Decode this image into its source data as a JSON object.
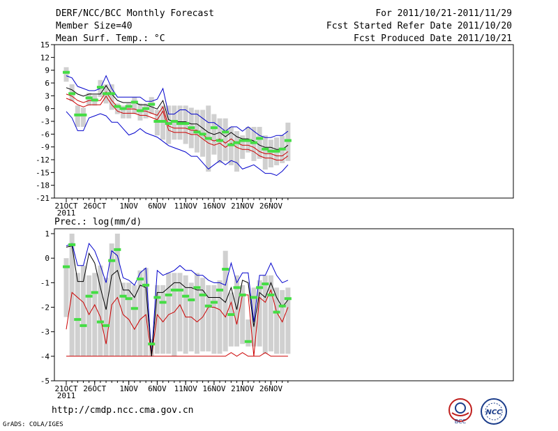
{
  "header": {
    "title": "DERF/NCC/BCC Monthly Forecast",
    "member_size": "Member Size=40",
    "variable": "Mean Surf. Temp.: °C",
    "period": "For 2011/10/21-2011/11/29",
    "started": "Fcst Started Refer Date 2011/10/20",
    "produced": "Fcst Produced Date 2011/10/21"
  },
  "footer": {
    "url": "http://cmdp.ncc.cma.gov.cn",
    "grads": "GrADS: COLA/IGES"
  },
  "logos": [
    {
      "name": "bcc-logo",
      "text": "BCC"
    },
    {
      "name": "ncc-logo",
      "text": "NCC"
    }
  ],
  "colors": {
    "median": "#000000",
    "envelope": "#0000cc",
    "inner": "#cc0000",
    "obs": "#44dd44",
    "box": "#d0d0d0",
    "grid": "#000000"
  },
  "chart_data": [
    {
      "type": "line",
      "title": "Mean Surf. Temp.: °C",
      "x_labels": [
        "21OCT",
        "26OCT",
        "1NOV",
        "6NOV",
        "11NOV",
        "16NOV",
        "21NOV",
        "26NOV"
      ],
      "x_label_days": [
        0,
        5,
        11,
        16,
        21,
        26,
        31,
        36
      ],
      "year_label": "2011",
      "ylim": [
        -21,
        15
      ],
      "yticks": [
        15,
        12,
        9,
        6,
        3,
        0,
        -3,
        -6,
        -9,
        -12,
        -15,
        -18,
        -21
      ],
      "days": 40,
      "series": [
        {
          "name": "ensemble max",
          "values": [
            7.7,
            7.2,
            5.2,
            4.7,
            4.2,
            4.2,
            4.7,
            7.7,
            4.7,
            2.7,
            2.7,
            2.7,
            2.7,
            2.7,
            1.7,
            1.7,
            2.2,
            4.7,
            -1.3,
            -1.3,
            -0.3,
            -0.3,
            -1.3,
            -1.3,
            -2.3,
            -3.3,
            -3.3,
            -4.3,
            -5.3,
            -4.3,
            -4.3,
            -5.3,
            -4.3,
            -5.3,
            -6.3,
            -6.8,
            -6.8,
            -6.3,
            -6.3,
            -5.3
          ]
        },
        {
          "name": "ensemble min",
          "values": [
            -0.7,
            -2.2,
            -5.2,
            -5.2,
            -2.2,
            -1.7,
            -1.2,
            -1.7,
            -3.2,
            -3.2,
            -4.7,
            -6.2,
            -5.7,
            -4.7,
            -5.7,
            -6.2,
            -6.7,
            -7.7,
            -8.7,
            -9.2,
            -9.7,
            -10.2,
            -11.2,
            -11.2,
            -12.7,
            -14.2,
            -13.2,
            -12.2,
            -13.2,
            -12.2,
            -12.7,
            -14.2,
            -13.7,
            -13.2,
            -14.2,
            -15.2,
            -15.2,
            -15.7,
            -14.7,
            -13.2
          ]
        },
        {
          "name": "ensemble median",
          "values": [
            4.9,
            4.4,
            3.4,
            2.9,
            3.4,
            3.4,
            3.4,
            5.4,
            3.4,
            1.9,
            1.4,
            1.4,
            1.4,
            0.9,
            0.9,
            0.4,
            -0.1,
            1.9,
            -2.6,
            -3.1,
            -3.1,
            -3.1,
            -3.6,
            -3.6,
            -4.6,
            -5.6,
            -6.1,
            -5.6,
            -6.6,
            -5.6,
            -6.6,
            -7.1,
            -7.1,
            -7.6,
            -8.6,
            -9.1,
            -9.1,
            -9.6,
            -9.6,
            -8.6
          ]
        },
        {
          "name": "upper quartile",
          "values": [
            3.4,
            2.9,
            1.9,
            1.4,
            1.9,
            1.9,
            1.9,
            3.9,
            1.9,
            0.4,
            -0.1,
            -0.1,
            -0.1,
            -0.6,
            -0.6,
            -1.1,
            -1.6,
            0.4,
            -4.1,
            -4.6,
            -4.6,
            -4.6,
            -5.1,
            -5.1,
            -6.1,
            -7.1,
            -7.6,
            -7.1,
            -8.1,
            -7.1,
            -8.1,
            -8.6,
            -8.6,
            -9.1,
            -10.1,
            -10.6,
            -10.6,
            -11.1,
            -11.1,
            -10.1
          ]
        },
        {
          "name": "lower quartile",
          "values": [
            2.4,
            1.9,
            0.9,
            0.4,
            0.9,
            0.9,
            0.9,
            2.9,
            0.9,
            -0.6,
            -1.1,
            -1.1,
            -1.1,
            -1.6,
            -1.6,
            -2.1,
            -2.6,
            -0.6,
            -5.1,
            -5.6,
            -5.6,
            -5.6,
            -6.1,
            -6.1,
            -7.1,
            -8.1,
            -8.6,
            -8.1,
            -9.1,
            -8.1,
            -9.1,
            -9.6,
            -9.6,
            -10.1,
            -11.1,
            -11.6,
            -11.6,
            -12.1,
            -12.1,
            -11.1
          ]
        },
        {
          "name": "observed",
          "values": [
            8.5,
            3.5,
            -1.5,
            -1.5,
            2.5,
            2.0,
            5.0,
            3.5,
            3.5,
            0.5,
            0.0,
            0.5,
            1.5,
            -0.5,
            0.0,
            1.0,
            -3.0,
            -3.0,
            -3.5,
            -3.0,
            -3.5,
            -3.5,
            -4.5,
            -5.5,
            -6.0,
            -7.0,
            -4.5,
            -7.5,
            -5.5,
            -8.5,
            -8.0,
            -7.5,
            -7.5,
            -8.0,
            -7.0,
            -9.5,
            -10.0,
            -10.0,
            -9.5,
            -7.5
          ]
        },
        {
          "name": "box high",
          "values": [
            9.7,
            5.7,
            0.7,
            0.2,
            3.7,
            3.2,
            6.7,
            5.7,
            5.7,
            1.2,
            0.7,
            1.2,
            2.7,
            1.2,
            1.2,
            2.7,
            -0.3,
            0.7,
            0.7,
            0.7,
            0.7,
            0.7,
            0.2,
            -0.3,
            -0.3,
            0.7,
            -1.3,
            -2.3,
            -2.3,
            -4.3,
            -5.3,
            -6.3,
            -4.3,
            -4.3,
            -4.3,
            -6.3,
            -7.3,
            -6.8,
            -6.3,
            -3.3
          ]
        },
        {
          "name": "box low",
          "values": [
            6.3,
            1.7,
            -4.3,
            -4.3,
            0.7,
            0.7,
            2.7,
            1.2,
            -0.3,
            -1.3,
            -2.3,
            -2.3,
            -1.3,
            -2.8,
            -2.3,
            -1.3,
            -6.3,
            -7.3,
            -8.3,
            -7.3,
            -7.3,
            -8.3,
            -9.3,
            -10.3,
            -11.3,
            -14.8,
            -10.8,
            -12.8,
            -12.3,
            -13.3,
            -14.8,
            -11.8,
            -10.3,
            -12.3,
            -11.8,
            -14.3,
            -13.8,
            -13.3,
            -12.8,
            -12.3
          ]
        }
      ]
    },
    {
      "type": "line",
      "title": "Prec.: log(mm/d)",
      "x_labels": [
        "21OCT",
        "26OCT",
        "1NOV",
        "6NOV",
        "11NOV",
        "16NOV",
        "21NOV",
        "26NOV"
      ],
      "x_label_days": [
        0,
        5,
        11,
        16,
        21,
        26,
        31,
        36
      ],
      "year_label": "2011",
      "ylim": [
        -5,
        1.2
      ],
      "yticks": [
        1,
        0,
        -1,
        -2,
        -3,
        -4,
        -5
      ],
      "days": 40,
      "series": [
        {
          "name": "ensemble max",
          "values": [
            0.5,
            0.6,
            -0.3,
            -0.3,
            0.6,
            0.3,
            -0.3,
            -1.0,
            0.3,
            0.1,
            -0.8,
            -0.9,
            -1.1,
            -0.6,
            -0.4,
            -4.0,
            -0.5,
            -0.7,
            -0.6,
            -0.5,
            -0.3,
            -0.5,
            -0.5,
            -0.7,
            -0.7,
            -0.9,
            -1.0,
            -1.0,
            -1.1,
            -0.2,
            -1.0,
            -0.6,
            -0.6,
            -2.6,
            -0.7,
            -0.7,
            -0.2,
            -0.7,
            -1.0,
            -0.9
          ]
        },
        {
          "name": "ensemble median",
          "values": [
            0.45,
            0.5,
            -0.95,
            -0.95,
            0.2,
            -0.2,
            -1.2,
            -2.1,
            -0.7,
            -0.5,
            -1.3,
            -1.3,
            -1.6,
            -1.1,
            -1.2,
            -4.0,
            -1.4,
            -1.4,
            -1.2,
            -1.0,
            -1.0,
            -1.2,
            -1.2,
            -1.3,
            -1.3,
            -1.6,
            -1.6,
            -1.6,
            -1.8,
            -1.2,
            -2.1,
            -0.9,
            -1.0,
            -2.8,
            -1.4,
            -1.6,
            -1.0,
            -1.6,
            -2.0,
            -1.7
          ]
        },
        {
          "name": "ensemble min",
          "values": [
            -2.9,
            -1.4,
            -1.6,
            -1.8,
            -2.3,
            -1.9,
            -2.4,
            -3.5,
            -1.9,
            -1.6,
            -2.3,
            -2.5,
            -2.9,
            -2.5,
            -2.3,
            -4.0,
            -2.3,
            -2.6,
            -2.3,
            -2.2,
            -1.9,
            -2.4,
            -2.4,
            -2.6,
            -2.4,
            -2.0,
            -2.0,
            -2.1,
            -2.4,
            -1.8,
            -2.7,
            -1.5,
            -1.5,
            -4.0,
            -1.6,
            -1.8,
            -1.3,
            -2.2,
            -2.6,
            -2.0
          ]
        },
        {
          "name": "trace low",
          "values": [
            -4.0,
            -4.0,
            -4.0,
            -4.0,
            -4.0,
            -4.0,
            -4.0,
            -4.0,
            -4.0,
            -4.0,
            -4.0,
            -4.0,
            -4.0,
            -4.0,
            -4.0,
            -4.0,
            -4.0,
            -4.0,
            -4.0,
            -4.0,
            -4.0,
            -4.0,
            -4.0,
            -4.0,
            -4.0,
            -4.0,
            -4.0,
            -4.0,
            -4.0,
            -3.85,
            -4.0,
            -3.85,
            -4.0,
            -4.0,
            -4.0,
            -3.85,
            -4.0,
            -4.0,
            -4.0,
            -4.0
          ]
        },
        {
          "name": "observed",
          "values": [
            -0.35,
            0.55,
            -2.5,
            -2.75,
            -1.55,
            -1.4,
            -2.6,
            -2.75,
            -0.1,
            0.35,
            -1.55,
            -1.65,
            -2.05,
            -0.85,
            -1.1,
            -3.5,
            -1.6,
            -1.8,
            -1.5,
            -1.3,
            -1.3,
            -1.55,
            -1.7,
            -1.2,
            -1.5,
            -1.95,
            -1.8,
            -1.3,
            -0.45,
            -2.3,
            -1.2,
            -1.5,
            -3.4,
            -1.6,
            -1.2,
            -1.05,
            -1.5,
            -2.2,
            -1.95,
            -1.65
          ]
        },
        {
          "name": "box high",
          "values": [
            0.0,
            1.0,
            -0.6,
            -0.3,
            -0.7,
            -0.6,
            -0.3,
            -0.8,
            0.6,
            1.0,
            -1.0,
            -1.0,
            -1.1,
            -0.5,
            -0.4,
            -3.3,
            -1.1,
            -1.1,
            -0.6,
            -0.6,
            -0.6,
            -0.7,
            -1.0,
            -0.6,
            -0.8,
            -1.1,
            -1.1,
            -0.9,
            0.3,
            -1.4,
            -0.7,
            -1.1,
            -2.5,
            -1.2,
            -0.9,
            -0.7,
            -0.7,
            -1.2,
            -1.3,
            -1.2
          ]
        },
        {
          "name": "box low",
          "values": [
            -2.4,
            -4.0,
            -4.0,
            -4.0,
            -4.0,
            -4.0,
            -4.0,
            -4.0,
            -4.0,
            -4.0,
            -4.0,
            -4.0,
            -4.0,
            -4.0,
            -4.0,
            -4.0,
            -3.9,
            -3.9,
            -3.9,
            -4.0,
            -3.8,
            -3.9,
            -3.8,
            -3.9,
            -3.8,
            -3.8,
            -3.9,
            -3.9,
            -3.8,
            -3.6,
            -3.6,
            -3.5,
            -3.6,
            -3.6,
            -3.6,
            -3.9,
            -3.8,
            -3.9,
            -3.9,
            -3.9
          ]
        }
      ]
    }
  ]
}
